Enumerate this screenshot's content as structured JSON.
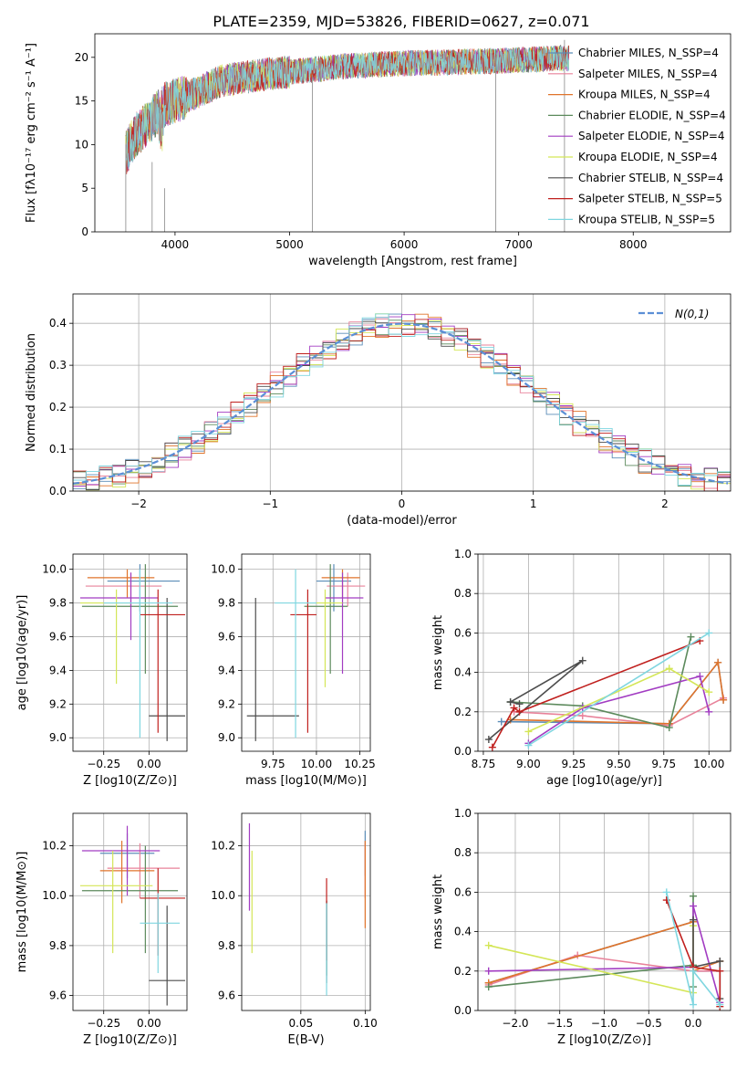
{
  "figure_title": "PLATE=2359, MJD=53826, FIBERID=0627, z=0.071",
  "colors": [
    "#5b8db8",
    "#e8829a",
    "#e0742b",
    "#5c8a5c",
    "#a23cc2",
    "#d4e657",
    "#4d4d4d",
    "#c0201e",
    "#7fd6e0"
  ],
  "chart_data": [
    {
      "id": "spectrum",
      "type": "line",
      "xlabel": "wavelength [Angstrom, rest frame]",
      "ylabel": "Flux [fλ10⁻¹⁷ erg cm⁻² s⁻¹ A⁻¹]",
      "xlim": [
        3300,
        8850
      ],
      "ylim": [
        0,
        22.7
      ],
      "xticks": [
        4000,
        5000,
        6000,
        7000,
        8000
      ],
      "yticks": [
        0,
        5,
        10,
        15,
        20
      ],
      "legend_position": "upper right",
      "series": [
        {
          "name": "Chabrier MILES, N_SSP=4"
        },
        {
          "name": "Salpeter MILES, N_SSP=4"
        },
        {
          "name": "Kroupa MILES, N_SSP=4"
        },
        {
          "name": "Chabrier ELODIE, N_SSP=4"
        },
        {
          "name": "Salpeter ELODIE, N_SSP=4"
        },
        {
          "name": "Kroupa ELODIE, N_SSP=4"
        },
        {
          "name": "Chabrier STELIB, N_SSP=4"
        },
        {
          "name": "Salpeter STELIB, N_SSP=5"
        },
        {
          "name": "Kroupa STELIB, N_SSP=5"
        }
      ],
      "continuum": {
        "x": [
          3570,
          3650,
          3800,
          3900,
          4000,
          4200,
          4400,
          4600,
          4800,
          5000,
          5200,
          5500,
          5800,
          6000,
          6300,
          6600,
          6800,
          7000,
          7200,
          7400
        ],
        "y": [
          9,
          11,
          13,
          14.5,
          15,
          16,
          17.3,
          17.7,
          18.1,
          18.3,
          18.6,
          19,
          19.2,
          19.3,
          19.4,
          19.5,
          19.6,
          19.7,
          19.8,
          19.9
        ]
      }
    },
    {
      "id": "residuals",
      "type": "histogram",
      "xlabel": "(data-model)/error",
      "ylabel": "Normed distribution",
      "xlim": [
        -2.5,
        2.5
      ],
      "ylim": [
        0,
        0.47
      ],
      "xticks": [
        -2,
        -1,
        0,
        1,
        2
      ],
      "xtick_labels": [
        "−2",
        "−1",
        "0",
        "1",
        "2"
      ],
      "yticks": [
        0.0,
        0.1,
        0.2,
        0.3,
        0.4
      ],
      "grid": true,
      "legend_label": "N(0,1)",
      "legend_position": "upper right",
      "bin_width": 0.1
    },
    {
      "id": "age_vs_Z",
      "type": "errorbar",
      "xlabel": "Z [log10(Z/Z⊙)]",
      "ylabel": "age  [log10(age/yr)]",
      "xlim": [
        -0.42,
        0.21
      ],
      "ylim": [
        8.92,
        10.09
      ],
      "xticks": [
        -0.25,
        0.0
      ],
      "xtick_labels": [
        "−0.25",
        "0.00"
      ],
      "yticks": [
        9.0,
        9.2,
        9.4,
        9.6,
        9.8,
        10.0
      ],
      "grid": true,
      "points": [
        {
          "x": -0.05,
          "xerr": [
            0.18,
            0.22
          ],
          "y": 9.93,
          "yerr": [
            0.18,
            0.1
          ]
        },
        {
          "x": -0.1,
          "xerr": [
            0.25,
            0.17
          ],
          "y": 9.9,
          "yerr": [
            0.12,
            0.08
          ]
        },
        {
          "x": -0.12,
          "xerr": [
            0.22,
            0.15
          ],
          "y": 9.95,
          "yerr": [
            0.12,
            0.05
          ]
        },
        {
          "x": -0.02,
          "xerr": [
            0.35,
            0.18
          ],
          "y": 9.78,
          "yerr": [
            0.4,
            0.25
          ]
        },
        {
          "x": -0.1,
          "xerr": [
            0.28,
            0.15
          ],
          "y": 9.83,
          "yerr": [
            0.25,
            0.15
          ]
        },
        {
          "x": -0.18,
          "xerr": [
            0.2,
            0.18
          ],
          "y": 9.8,
          "yerr": [
            0.48,
            0.08
          ]
        },
        {
          "x": 0.1,
          "xerr": [
            0.1,
            0.1
          ],
          "y": 9.13,
          "yerr": [
            0.15,
            0.7
          ]
        },
        {
          "x": 0.05,
          "xerr": [
            0.1,
            0.15
          ],
          "y": 9.73,
          "yerr": [
            0.7,
            0.15
          ]
        },
        {
          "x": -0.05,
          "xerr": [
            0.2,
            0.18
          ],
          "y": 9.8,
          "yerr": [
            0.8,
            0.2
          ]
        }
      ]
    },
    {
      "id": "age_vs_mass",
      "type": "errorbar",
      "xlabel": "mass [log10(M/M⊙)]",
      "ylabel": "",
      "xlim": [
        9.57,
        10.31
      ],
      "ylim": [
        8.92,
        10.09
      ],
      "xticks": [
        9.75,
        10.0,
        10.25
      ],
      "xtick_labels": [
        "9.75",
        "10.00",
        "10.25"
      ],
      "yticks": [
        9.0,
        9.2,
        9.4,
        9.6,
        9.8,
        10.0
      ],
      "grid": true,
      "points": [
        {
          "x": 10.1,
          "xerr": [
            0.1,
            0.1
          ],
          "y": 9.93,
          "yerr": [
            0.18,
            0.1
          ]
        },
        {
          "x": 10.18,
          "xerr": [
            0.12,
            0.1
          ],
          "y": 9.9,
          "yerr": [
            0.12,
            0.08
          ]
        },
        {
          "x": 10.15,
          "xerr": [
            0.12,
            0.1
          ],
          "y": 9.95,
          "yerr": [
            0.12,
            0.05
          ]
        },
        {
          "x": 10.08,
          "xerr": [
            0.15,
            0.1
          ],
          "y": 9.78,
          "yerr": [
            0.4,
            0.25
          ]
        },
        {
          "x": 10.15,
          "xerr": [
            0.1,
            0.12
          ],
          "y": 9.83,
          "yerr": [
            0.45,
            0.15
          ]
        },
        {
          "x": 10.05,
          "xerr": [
            0.12,
            0.1
          ],
          "y": 9.8,
          "yerr": [
            0.5,
            0.08
          ]
        },
        {
          "x": 9.65,
          "xerr": [
            0.05,
            0.25
          ],
          "y": 9.13,
          "yerr": [
            0.15,
            0.7
          ]
        },
        {
          "x": 9.95,
          "xerr": [
            0.1,
            0.05
          ],
          "y": 9.73,
          "yerr": [
            0.7,
            0.15
          ]
        },
        {
          "x": 9.88,
          "xerr": [
            0.12,
            0.12
          ],
          "y": 9.8,
          "yerr": [
            0.8,
            0.2
          ]
        }
      ]
    },
    {
      "id": "weight_vs_age",
      "type": "line",
      "xlabel": "age  [log10(age/yr)]",
      "ylabel": "mass weight",
      "xlim": [
        8.72,
        10.12
      ],
      "ylim": [
        0,
        1.0
      ],
      "xticks": [
        8.75,
        9.0,
        9.25,
        9.5,
        9.75,
        10.0
      ],
      "xtick_labels": [
        "8.75",
        "9.00",
        "9.25",
        "9.50",
        "9.75",
        "10.00"
      ],
      "yticks": [
        0.0,
        0.2,
        0.4,
        0.6,
        0.8,
        1.0
      ],
      "grid": true,
      "series": [
        {
          "x": [
            8.85,
            9.78,
            10.05,
            10.08
          ],
          "y": [
            0.15,
            0.14,
            0.45,
            0.26
          ]
        },
        {
          "x": [
            8.92,
            9.3,
            9.78,
            10.08
          ],
          "y": [
            0.2,
            0.18,
            0.13,
            0.27
          ]
        },
        {
          "x": [
            8.9,
            9.78,
            10.05,
            10.08
          ],
          "y": [
            0.16,
            0.14,
            0.45,
            0.26
          ]
        },
        {
          "x": [
            8.9,
            9.3,
            9.78,
            9.9
          ],
          "y": [
            0.25,
            0.23,
            0.12,
            0.58
          ]
        },
        {
          "x": [
            9.0,
            9.3,
            9.95,
            10.0
          ],
          "y": [
            0.04,
            0.22,
            0.38,
            0.2
          ]
        },
        {
          "x": [
            9.0,
            9.78,
            10.0
          ],
          "y": [
            0.1,
            0.42,
            0.3
          ]
        },
        {
          "x": [
            8.78,
            9.3,
            8.9,
            8.95
          ],
          "y": [
            0.06,
            0.46,
            0.25,
            0.24
          ]
        },
        {
          "x": [
            8.8,
            8.92,
            8.95,
            9.95
          ],
          "y": [
            0.02,
            0.22,
            0.2,
            0.56
          ]
        },
        {
          "x": [
            9.0,
            10.0
          ],
          "y": [
            0.03,
            0.6
          ]
        }
      ]
    },
    {
      "id": "mass_vs_Z",
      "type": "errorbar",
      "xlabel": "Z [log10(Z/Z⊙)]",
      "ylabel": "mass [log10(M/M⊙)]",
      "xlim": [
        -0.42,
        0.21
      ],
      "ylim": [
        9.54,
        10.33
      ],
      "xticks": [
        -0.25,
        0.0
      ],
      "xtick_labels": [
        "−0.25",
        "0.00"
      ],
      "yticks": [
        9.6,
        9.8,
        10.0,
        10.2
      ],
      "grid": true,
      "points": [
        {
          "x": -0.12,
          "xerr": [
            0.15,
            0.15
          ],
          "y": 10.17,
          "yerr": [
            0.1,
            0.08
          ]
        },
        {
          "x": -0.05,
          "xerr": [
            0.18,
            0.22
          ],
          "y": 10.11,
          "yerr": [
            0.12,
            0.1
          ]
        },
        {
          "x": -0.15,
          "xerr": [
            0.12,
            0.18
          ],
          "y": 10.1,
          "yerr": [
            0.13,
            0.12
          ]
        },
        {
          "x": -0.02,
          "xerr": [
            0.35,
            0.18
          ],
          "y": 10.02,
          "yerr": [
            0.25,
            0.18
          ]
        },
        {
          "x": -0.12,
          "xerr": [
            0.25,
            0.18
          ],
          "y": 10.18,
          "yerr": [
            0.18,
            0.1
          ]
        },
        {
          "x": -0.2,
          "xerr": [
            0.18,
            0.22
          ],
          "y": 10.04,
          "yerr": [
            0.27,
            0.14
          ]
        },
        {
          "x": 0.1,
          "xerr": [
            0.1,
            0.1
          ],
          "y": 9.66,
          "yerr": [
            0.1,
            0.3
          ]
        },
        {
          "x": 0.05,
          "xerr": [
            0.1,
            0.15
          ],
          "y": 9.99,
          "yerr": [
            0.23,
            0.12
          ]
        },
        {
          "x": 0.05,
          "xerr": [
            0.1,
            0.12
          ],
          "y": 9.89,
          "yerr": [
            0.2,
            0.12
          ]
        }
      ]
    },
    {
      "id": "mass_vs_EBV",
      "type": "errorbar",
      "xlabel": "E(B-V)",
      "ylabel": "",
      "xlim": [
        0.004,
        0.104
      ],
      "ylim": [
        9.54,
        10.33
      ],
      "xticks": [
        0.05,
        0.1
      ],
      "xtick_labels": [
        "0.05",
        "0.10"
      ],
      "yticks": [
        9.6,
        9.8,
        10.0,
        10.2
      ],
      "grid": true,
      "points": [
        {
          "x": 0.1,
          "y": 10.18,
          "yerr": [
            0.1,
            0.08
          ]
        },
        {
          "x": 0.1,
          "y": 10.11,
          "yerr": [
            0.12,
            0.1
          ]
        },
        {
          "x": 0.1,
          "y": 10.1,
          "yerr": [
            0.23,
            0.12
          ]
        },
        {
          "x": 0.07,
          "y": 9.88,
          "yerr": [
            0.2,
            0.1
          ]
        },
        {
          "x": 0.01,
          "y": 10.11,
          "yerr": [
            0.17,
            0.18
          ]
        },
        {
          "x": 0.012,
          "y": 10.04,
          "yerr": [
            0.27,
            0.14
          ]
        },
        {
          "x": 0.07,
          "y": 9.8,
          "yerr": [
            0.15,
            0.18
          ]
        },
        {
          "x": 0.07,
          "y": 9.94,
          "yerr": [
            0.2,
            0.13
          ]
        },
        {
          "x": 0.07,
          "y": 9.8,
          "yerr": [
            0.2,
            0.17
          ]
        }
      ]
    },
    {
      "id": "weight_vs_Z",
      "type": "line",
      "xlabel": "Z [log10(Z/Z⊙)]",
      "ylabel": "mass weight",
      "xlim": [
        -2.42,
        0.42
      ],
      "ylim": [
        0,
        1.0
      ],
      "xticks": [
        -2.0,
        -1.5,
        -1.0,
        -0.5,
        0.0
      ],
      "xtick_labels": [
        "−2.0",
        "−1.5",
        "−1.0",
        "−0.5",
        "0.0"
      ],
      "yticks": [
        0.0,
        0.2,
        0.4,
        0.6,
        0.8,
        1.0
      ],
      "grid": true,
      "series": [
        {
          "x": [
            -2.3,
            0.0,
            0.0,
            0.3
          ],
          "y": [
            0.14,
            0.45,
            0.2,
            0.2
          ]
        },
        {
          "x": [
            -2.3,
            -1.3,
            0.0,
            0.3
          ],
          "y": [
            0.13,
            0.28,
            0.2,
            0.2
          ]
        },
        {
          "x": [
            -2.3,
            0.0,
            0.0,
            0.3
          ],
          "y": [
            0.14,
            0.45,
            0.2,
            0.25
          ]
        },
        {
          "x": [
            -2.3,
            0.0,
            0.0,
            0.0
          ],
          "y": [
            0.12,
            0.23,
            0.58,
            0.12
          ]
        },
        {
          "x": [
            -2.3,
            0.0,
            0.0,
            0.3
          ],
          "y": [
            0.2,
            0.22,
            0.53,
            0.04
          ]
        },
        {
          "x": [
            -2.3,
            0.0,
            0.0
          ],
          "y": [
            0.33,
            0.09,
            0.43
          ]
        },
        {
          "x": [
            0.0,
            0.0,
            0.3,
            0.3
          ],
          "y": [
            0.46,
            0.22,
            0.25,
            0.06
          ]
        },
        {
          "x": [
            -0.3,
            0.0,
            0.3,
            0.3
          ],
          "y": [
            0.56,
            0.22,
            0.2,
            0.02
          ]
        },
        {
          "x": [
            -0.3,
            0.0,
            0.0,
            0.3
          ],
          "y": [
            0.6,
            0.03,
            0.2,
            0.03
          ]
        }
      ]
    }
  ]
}
